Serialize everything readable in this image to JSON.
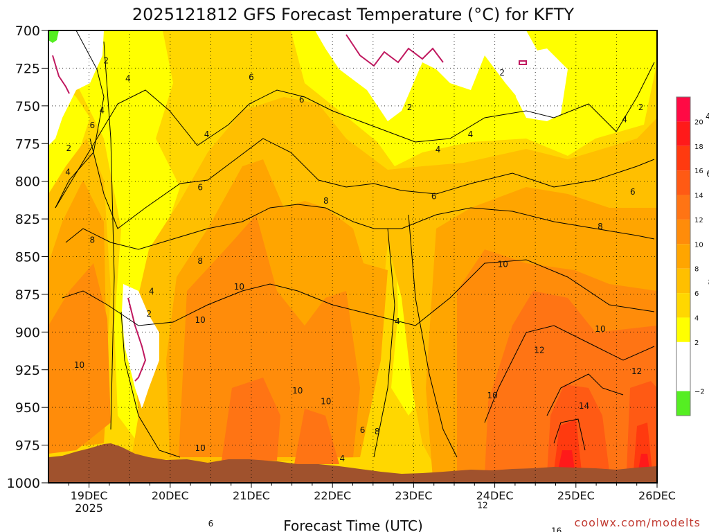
{
  "chart_data": {
    "type": "heatmap",
    "title": "2025121812 GFS Forecast Temperature (°C) for KFTY",
    "xlabel": "Forecast Time (UTC)",
    "ylabel": "Pressure (hPa)",
    "credit": "coolwx.com/modelts",
    "y_ticks": [
      "700",
      "725",
      "750",
      "775",
      "800",
      "825",
      "850",
      "875",
      "900",
      "925",
      "950",
      "975",
      "1000"
    ],
    "y_values": [
      700,
      725,
      750,
      775,
      800,
      825,
      850,
      875,
      900,
      925,
      950,
      975,
      1000
    ],
    "x_ticks": [
      {
        "label": "19DEC",
        "sub": "2025"
      },
      {
        "label": "20DEC",
        "sub": ""
      },
      {
        "label": "21DEC",
        "sub": ""
      },
      {
        "label": "22DEC",
        "sub": ""
      },
      {
        "label": "23DEC",
        "sub": ""
      },
      {
        "label": "24DEC",
        "sub": ""
      },
      {
        "label": "25DEC",
        "sub": ""
      },
      {
        "label": "26DEC",
        "sub": ""
      }
    ],
    "x_range_days": [
      -0.5,
      7.0
    ],
    "colorbar": {
      "ticks": [
        "20",
        "18",
        "16",
        "14",
        "12",
        "10",
        "8",
        "6",
        "4",
        "2",
        "−2"
      ],
      "bins": [
        {
          "min": 20,
          "max": 22,
          "color": "#ff0a44"
        },
        {
          "min": 18,
          "max": 20,
          "color": "#ff1a1a"
        },
        {
          "min": 16,
          "max": 18,
          "color": "#ff3a0f"
        },
        {
          "min": 14,
          "max": 16,
          "color": "#ff5a14"
        },
        {
          "min": 12,
          "max": 14,
          "color": "#ff7414"
        },
        {
          "min": 10,
          "max": 12,
          "color": "#ff8c0a"
        },
        {
          "min": 8,
          "max": 10,
          "color": "#ffa500"
        },
        {
          "min": 6,
          "max": 8,
          "color": "#ffbf00"
        },
        {
          "min": 4,
          "max": 6,
          "color": "#ffd700"
        },
        {
          "min": 2,
          "max": 4,
          "color": "#ffff00"
        },
        {
          "min": -2,
          "max": 2,
          "color": "#ffffff"
        },
        {
          "min": -4,
          "max": -2,
          "color": "#55ee22"
        }
      ]
    },
    "contour_labels": [
      {
        "v": "2",
        "d": 0.21,
        "p": 720
      },
      {
        "v": "4",
        "d": 0.48,
        "p": 732
      },
      {
        "v": "6",
        "d": 2.0,
        "p": 731
      },
      {
        "v": "2",
        "d": 3.95,
        "p": 751
      },
      {
        "v": "2",
        "d": 5.09,
        "p": 728
      },
      {
        "v": "2",
        "d": 6.8,
        "p": 751
      },
      {
        "v": "4",
        "d": 0.16,
        "p": 753
      },
      {
        "v": "6",
        "d": 0.04,
        "p": 763
      },
      {
        "v": "4",
        "d": 1.45,
        "p": 769
      },
      {
        "v": "6",
        "d": 2.62,
        "p": 746
      },
      {
        "v": "4",
        "d": 4.7,
        "p": 769
      },
      {
        "v": "4",
        "d": 4.3,
        "p": 779
      },
      {
        "v": "4",
        "d": 6.6,
        "p": 759
      },
      {
        "v": "4",
        "d": 7.63,
        "p": 757
      },
      {
        "v": "2",
        "d": -0.25,
        "p": 778
      },
      {
        "v": "4",
        "d": -0.26,
        "p": 794
      },
      {
        "v": "6",
        "d": 1.37,
        "p": 804
      },
      {
        "v": "6",
        "d": 6.7,
        "p": 807
      },
      {
        "v": "6",
        "d": 7.64,
        "p": 795
      },
      {
        "v": "8",
        "d": 2.92,
        "p": 813
      },
      {
        "v": "6",
        "d": 4.25,
        "p": 810
      },
      {
        "v": "8",
        "d": 0.04,
        "p": 839
      },
      {
        "v": "8",
        "d": 6.3,
        "p": 830
      },
      {
        "v": "8",
        "d": 1.37,
        "p": 853
      },
      {
        "v": "10",
        "d": 5.1,
        "p": 855
      },
      {
        "v": "8",
        "d": 7.66,
        "p": 867
      },
      {
        "v": "4",
        "d": 0.77,
        "p": 873
      },
      {
        "v": "4",
        "d": 3.8,
        "p": 893
      },
      {
        "v": "2",
        "d": 0.74,
        "p": 888
      },
      {
        "v": "10",
        "d": 1.85,
        "p": 870
      },
      {
        "v": "10",
        "d": 1.37,
        "p": 892
      },
      {
        "v": "10",
        "d": 6.3,
        "p": 898
      },
      {
        "v": "12",
        "d": 5.55,
        "p": 912
      },
      {
        "v": "10",
        "d": -0.12,
        "p": 922
      },
      {
        "v": "12",
        "d": 6.75,
        "p": 926
      },
      {
        "v": "10",
        "d": 2.57,
        "p": 939
      },
      {
        "v": "10",
        "d": 2.92,
        "p": 946
      },
      {
        "v": "10",
        "d": 4.97,
        "p": 942
      },
      {
        "v": "14",
        "d": 6.1,
        "p": 949
      },
      {
        "v": "6",
        "d": 3.37,
        "p": 965
      },
      {
        "v": "8",
        "d": 3.55,
        "p": 966
      },
      {
        "v": "10",
        "d": 1.37,
        "p": 977
      },
      {
        "v": "4",
        "d": 3.12,
        "p": 984
      },
      {
        "v": "12",
        "d": 4.85,
        "p": 1015
      },
      {
        "v": "16",
        "d": 5.76,
        "p": 1032
      },
      {
        "v": "6",
        "d": 1.5,
        "p": 1027
      },
      {
        "v": "4",
        "d": 1.15,
        "p": 1036
      },
      {
        "v": "6",
        "d": 3.25,
        "p": 1043
      },
      {
        "v": "6",
        "d": 2.62,
        "p": 1040
      }
    ],
    "legend_position": "right"
  }
}
